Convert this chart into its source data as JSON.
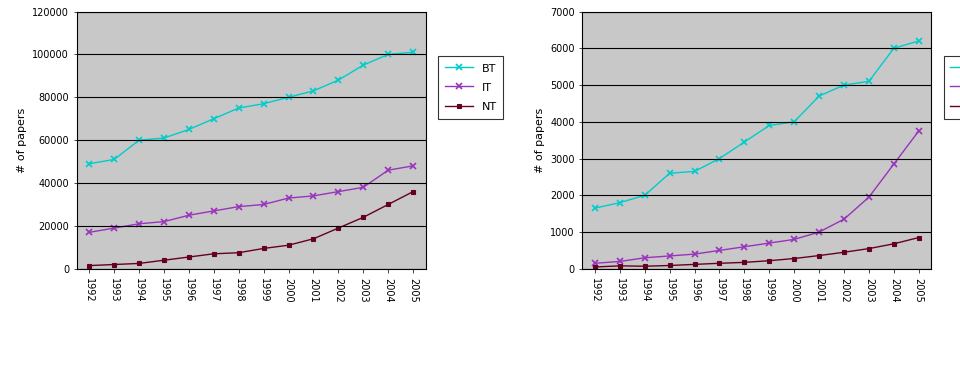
{
  "years": [
    "1992",
    "1993",
    "1994",
    "1995",
    "1996",
    "1997",
    "1998",
    "1999",
    "2000",
    "2001",
    "2002",
    "2003",
    "2004",
    "2005"
  ],
  "left": {
    "BT": [
      49000,
      51000,
      60000,
      61000,
      65000,
      70000,
      75000,
      77000,
      80000,
      83000,
      88000,
      95000,
      100000,
      101000
    ],
    "IT": [
      17000,
      19000,
      21000,
      22000,
      25000,
      27000,
      29000,
      30000,
      33000,
      34000,
      36000,
      38000,
      46000,
      48000
    ],
    "NT": [
      1500,
      2000,
      2500,
      4000,
      5500,
      7000,
      7500,
      9500,
      11000,
      14000,
      19000,
      24000,
      30000,
      36000
    ]
  },
  "right": {
    "BT&IT": [
      1650,
      1800,
      2000,
      2600,
      2650,
      3000,
      3450,
      3900,
      4000,
      4700,
      5000,
      5100,
      6000,
      6200
    ],
    "NT&BT": [
      150,
      200,
      300,
      350,
      400,
      500,
      600,
      700,
      800,
      1000,
      1350,
      1950,
      2850,
      3750
    ],
    "NT&IT": [
      50,
      80,
      70,
      90,
      120,
      150,
      175,
      220,
      280,
      360,
      450,
      550,
      680,
      850
    ]
  },
  "left_ylim": [
    0,
    120000
  ],
  "right_ylim": [
    0,
    7000
  ],
  "left_yticks": [
    0,
    20000,
    40000,
    60000,
    80000,
    100000,
    120000
  ],
  "right_yticks": [
    0,
    1000,
    2000,
    3000,
    4000,
    5000,
    6000,
    7000
  ],
  "ylabel": "# of papers",
  "bg_color": "#c8c8c8",
  "BT_color": "#00cccc",
  "IT_color": "#9933bb",
  "NT_color": "#660022",
  "BTIT_color": "#00cccc",
  "NTBT_color": "#9933bb",
  "NTIT_color": "#660022",
  "outer_bg": "#ffffff"
}
